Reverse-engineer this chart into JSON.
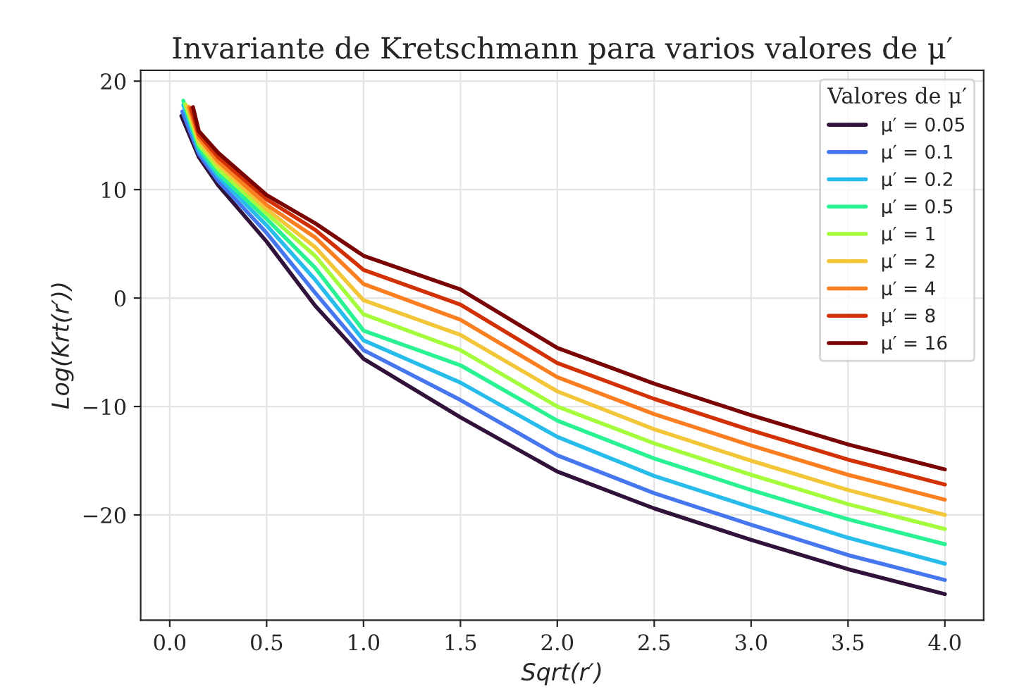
{
  "chart_data": {
    "type": "line",
    "title": "Invariante de Kretschmann para varios valores de μ′",
    "xlabel": "Sqrt(r′)",
    "ylabel": "Log(Krt(r′))",
    "legend_title": "Valores de μ′",
    "xlim": [
      -0.15,
      4.2
    ],
    "ylim": [
      -29.7,
      21
    ],
    "xticks": [
      {
        "value": 0,
        "label": "0.0"
      },
      0.5,
      {
        "value": 1,
        "label": "1.0"
      },
      1.5,
      {
        "value": 2,
        "label": "2.0"
      },
      2.5,
      {
        "value": 3,
        "label": "3.0"
      },
      3.5,
      {
        "value": 4,
        "label": "4.0"
      }
    ],
    "yticks": [
      {
        "value": -20,
        "label": "−20"
      },
      {
        "value": -10,
        "label": "−10"
      },
      0,
      10,
      20
    ],
    "grid": true,
    "legend": "top right",
    "series": [
      {
        "name": "μ′ = 0.05",
        "color": "#30123b",
        "x": [
          0.06,
          0.15,
          0.25,
          0.5,
          0.75,
          1.0,
          1.5,
          2.0,
          2.5,
          3.0,
          3.5,
          4.0
        ],
        "values": [
          16.8,
          13.0,
          10.4,
          5.2,
          -0.7,
          -5.6,
          -11.0,
          -16.0,
          -19.4,
          -22.3,
          -25.0,
          -27.3
        ]
      },
      {
        "name": "μ′ = 0.1",
        "color": "#4777ef",
        "x": [
          0.065,
          0.15,
          0.25,
          0.5,
          0.75,
          1.0,
          1.5,
          2.0,
          2.5,
          3.0,
          3.5,
          4.0
        ],
        "values": [
          17.2,
          13.3,
          10.8,
          6.0,
          0.5,
          -4.8,
          -9.4,
          -14.5,
          -18.0,
          -20.9,
          -23.7,
          -26.0
        ]
      },
      {
        "name": "μ′ = 0.2",
        "color": "#28bceb",
        "x": [
          0.07,
          0.15,
          0.25,
          0.5,
          0.75,
          1.0,
          1.5,
          2.0,
          2.5,
          3.0,
          3.5,
          4.0
        ],
        "values": [
          17.8,
          13.6,
          11.2,
          6.7,
          1.7,
          -3.9,
          -7.8,
          -12.8,
          -16.4,
          -19.3,
          -22.1,
          -24.5
        ]
      },
      {
        "name": "μ′ = 0.5",
        "color": "#2af293",
        "x": [
          0.07,
          0.15,
          0.25,
          0.5,
          0.75,
          1.0,
          1.5,
          2.0,
          2.5,
          3.0,
          3.5,
          4.0
        ],
        "values": [
          18.2,
          13.9,
          11.5,
          7.3,
          2.8,
          -3.0,
          -6.2,
          -11.3,
          -14.8,
          -17.7,
          -20.4,
          -22.7
        ]
      },
      {
        "name": "μ′ = 1",
        "color": "#a4fc3c",
        "x": [
          0.08,
          0.15,
          0.25,
          0.5,
          0.75,
          1.0,
          1.5,
          2.0,
          2.5,
          3.0,
          3.5,
          4.0
        ],
        "values": [
          17.9,
          14.2,
          11.9,
          7.8,
          3.9,
          -1.5,
          -4.8,
          -10.0,
          -13.4,
          -16.3,
          -19.0,
          -21.3
        ]
      },
      {
        "name": "μ′ = 2",
        "color": "#f3c63a",
        "x": [
          0.09,
          0.15,
          0.25,
          0.5,
          0.75,
          1.0,
          1.5,
          2.0,
          2.5,
          3.0,
          3.5,
          4.0
        ],
        "values": [
          17.7,
          14.5,
          12.3,
          8.2,
          4.7,
          -0.2,
          -3.4,
          -8.6,
          -12.1,
          -15.0,
          -17.7,
          -20.0
        ]
      },
      {
        "name": "μ′ = 4",
        "color": "#fb7e21",
        "x": [
          0.1,
          0.15,
          0.25,
          0.5,
          0.75,
          1.0,
          1.5,
          2.0,
          2.5,
          3.0,
          3.5,
          4.0
        ],
        "values": [
          17.6,
          14.8,
          12.6,
          8.6,
          5.6,
          1.3,
          -2.0,
          -7.3,
          -10.7,
          -13.6,
          -16.3,
          -18.6
        ]
      },
      {
        "name": "μ′ = 8",
        "color": "#d23105",
        "x": [
          0.11,
          0.15,
          0.25,
          0.5,
          0.75,
          1.0,
          1.5,
          2.0,
          2.5,
          3.0,
          3.5,
          4.0
        ],
        "values": [
          17.5,
          15.1,
          13.0,
          9.1,
          6.3,
          2.6,
          -0.6,
          -6.0,
          -9.3,
          -12.2,
          -14.9,
          -17.2
        ]
      },
      {
        "name": "μ′ = 16",
        "color": "#7a0403",
        "x": [
          0.12,
          0.15,
          0.25,
          0.5,
          0.75,
          1.0,
          1.5,
          2.0,
          2.5,
          3.0,
          3.5,
          4.0
        ],
        "values": [
          17.6,
          15.4,
          13.4,
          9.5,
          6.9,
          3.9,
          0.8,
          -4.6,
          -7.9,
          -10.8,
          -13.5,
          -15.8
        ]
      }
    ]
  }
}
